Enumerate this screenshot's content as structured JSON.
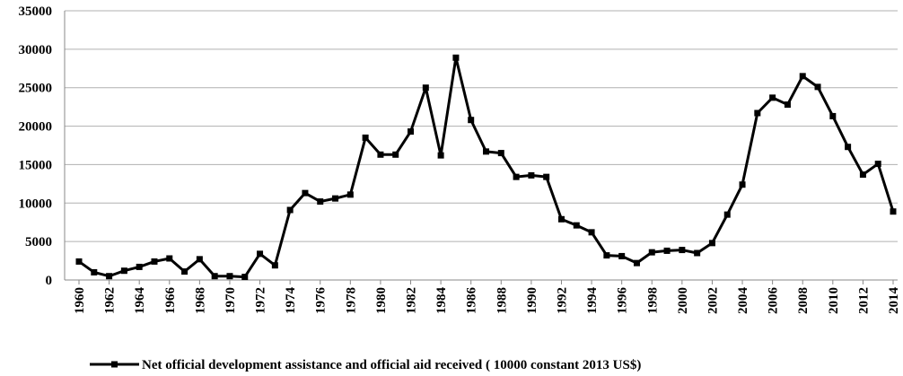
{
  "chart_data": {
    "type": "line",
    "x": [
      1960,
      1961,
      1962,
      1963,
      1964,
      1965,
      1966,
      1967,
      1968,
      1969,
      1970,
      1971,
      1972,
      1973,
      1974,
      1975,
      1976,
      1977,
      1978,
      1979,
      1980,
      1981,
      1982,
      1983,
      1984,
      1985,
      1986,
      1987,
      1988,
      1989,
      1990,
      1991,
      1992,
      1993,
      1994,
      1995,
      1996,
      1997,
      1998,
      1999,
      2000,
      2001,
      2002,
      2003,
      2004,
      2005,
      2006,
      2007,
      2008,
      2009,
      2010,
      2011,
      2012,
      2013,
      2014
    ],
    "series": [
      {
        "name": "Net official development assistance and official aid received ( 10000 constant 2013 US$)",
        "color": "#000000",
        "values": [
          2400,
          1000,
          500,
          1200,
          1700,
          2400,
          2800,
          1100,
          2700,
          500,
          500,
          400,
          3400,
          1900,
          9100,
          11300,
          10200,
          10600,
          11100,
          18500,
          16300,
          16300,
          19300,
          25000,
          16200,
          28900,
          20800,
          16700,
          16500,
          13400,
          13600,
          13400,
          7900,
          7100,
          6200,
          3200,
          3100,
          2200,
          3600,
          3800,
          3900,
          3500,
          4800,
          8500,
          12400,
          21700,
          23700,
          22800,
          26500,
          25100,
          21300,
          17300,
          13700,
          15100,
          8900
        ]
      }
    ],
    "xlim": [
      1960,
      2014
    ],
    "xticks": [
      1960,
      1962,
      1964,
      1966,
      1968,
      1970,
      1972,
      1974,
      1976,
      1978,
      1980,
      1982,
      1984,
      1986,
      1988,
      1990,
      1992,
      1994,
      1996,
      1998,
      2000,
      2002,
      2004,
      2006,
      2008,
      2010,
      2012,
      2014
    ],
    "ylim": [
      0,
      35000
    ],
    "yticks": [
      0,
      5000,
      10000,
      15000,
      20000,
      25000,
      30000,
      35000
    ],
    "grid": true
  }
}
